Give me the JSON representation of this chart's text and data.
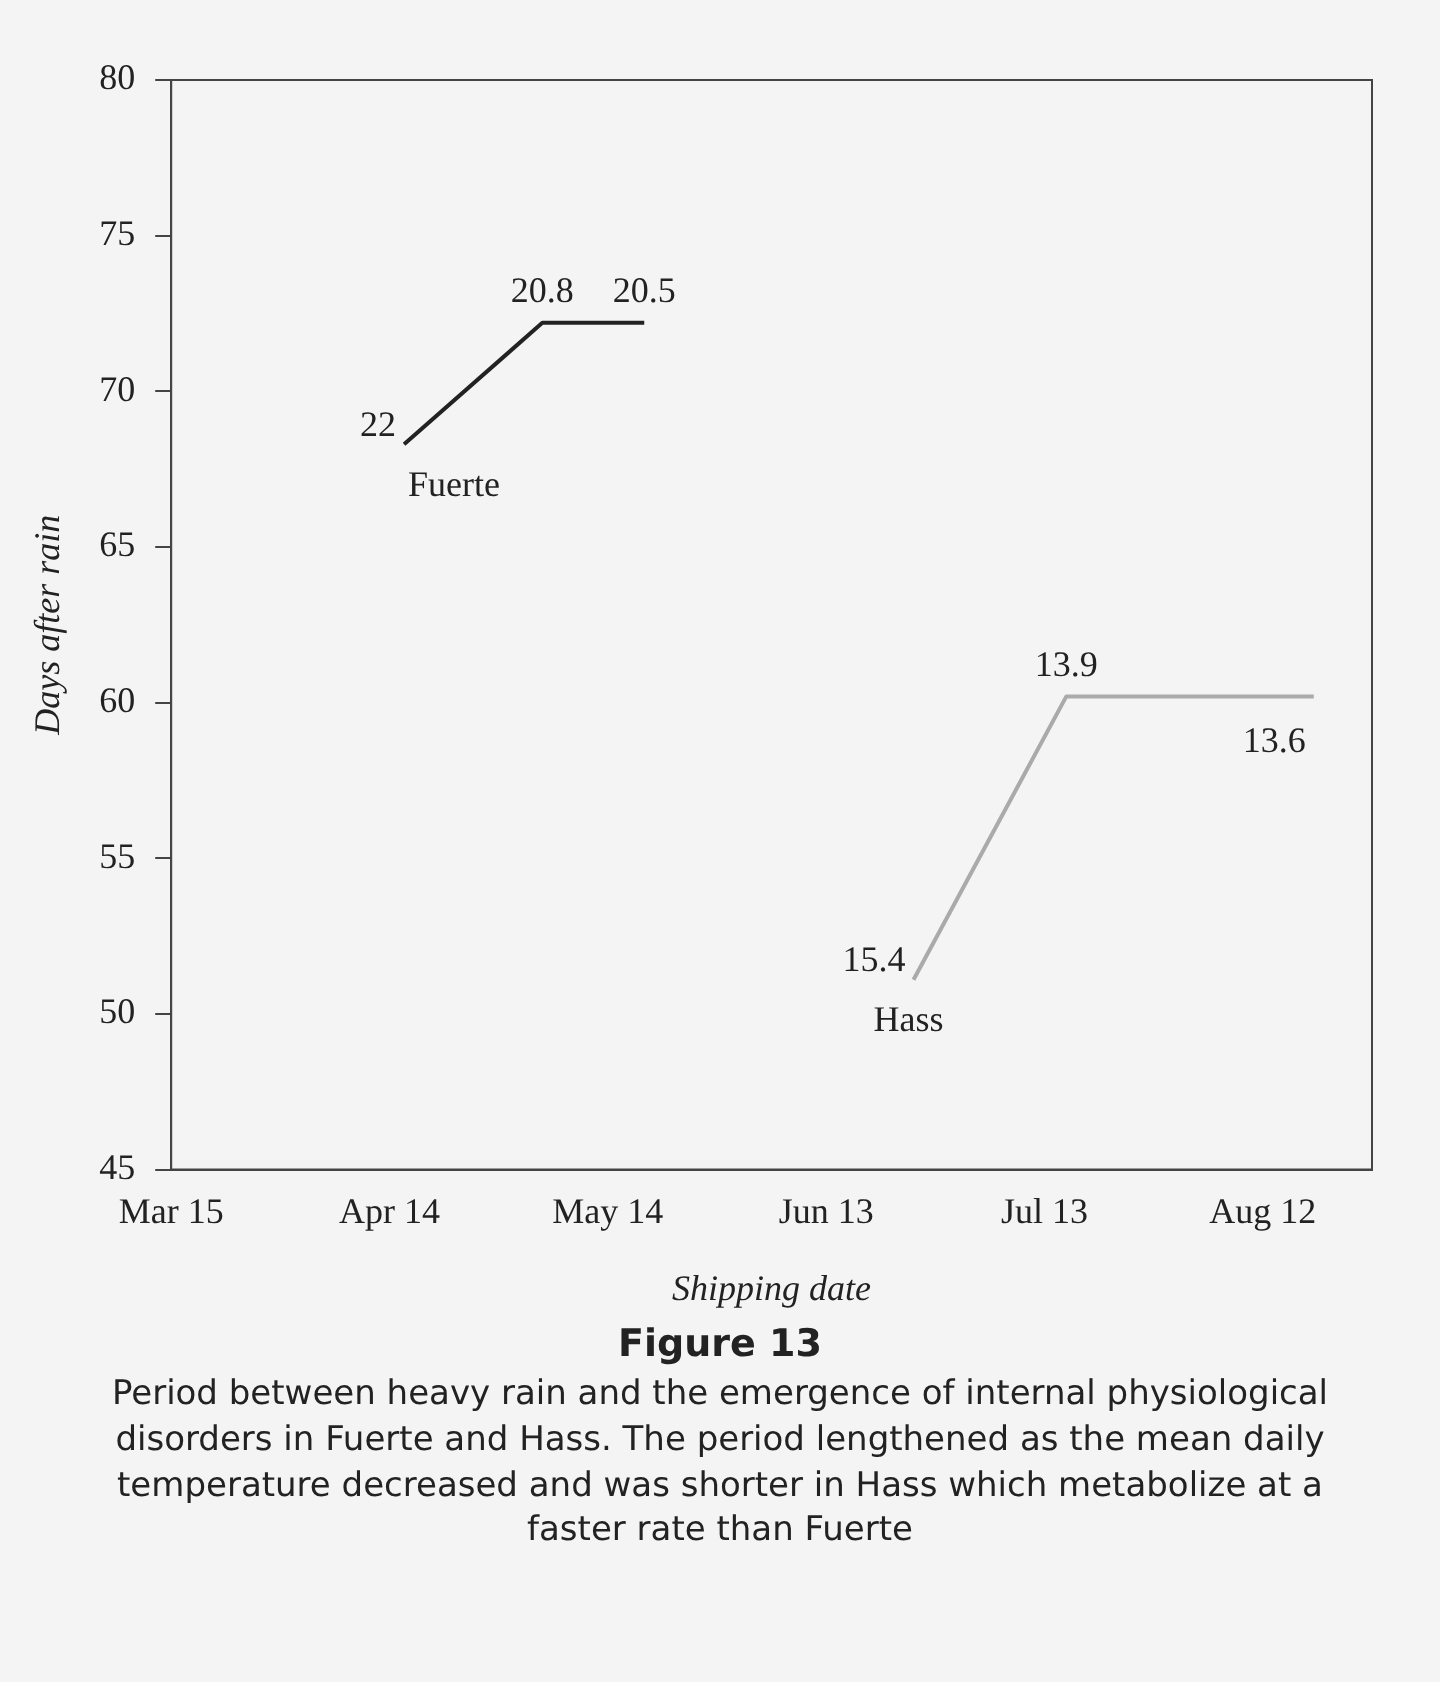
{
  "chart_data": {
    "type": "line",
    "xlabel": "Shipping date",
    "ylabel": "Days after rain",
    "xlim": [
      "--03-15",
      "--08-27"
    ],
    "xticks": [
      {
        "value": "--03-15",
        "label": "Mar 15"
      },
      {
        "value": "--04-14",
        "label": "Apr 14"
      },
      {
        "value": "--05-14",
        "label": "May 14"
      },
      {
        "value": "--06-13",
        "label": "Jun 13"
      },
      {
        "value": "--07-13",
        "label": "Jul 13"
      },
      {
        "value": "--08-12",
        "label": "Aug 12"
      }
    ],
    "ylim": [
      45,
      80
    ],
    "yticks": [
      45,
      50,
      55,
      60,
      65,
      70,
      75,
      80
    ],
    "series": [
      {
        "name": "Fuerte",
        "color": "#222222",
        "x": [
          "--04-16",
          "--05-05",
          "--05-19"
        ],
        "values": [
          68.3,
          72.2,
          72.2
        ]
      },
      {
        "name": "Hass",
        "color": "#aaaaaa",
        "x": [
          "--06-25",
          "--07-16",
          "--08-19"
        ],
        "values": [
          51.1,
          60.2,
          60.2
        ]
      }
    ],
    "grid": false,
    "legend": false,
    "marker": "none",
    "line_style": "solid",
    "annotations": [
      {
        "text": "22",
        "x": "--04-16",
        "y": 68.3
      },
      {
        "text": "20.8",
        "x": "--05-05",
        "y": 72.2
      },
      {
        "text": "20.5",
        "x": "--05-19",
        "y": 72.2
      },
      {
        "text": "15.4",
        "x": "--06-25",
        "y": 51.1
      },
      {
        "text": "13.9",
        "x": "--07-16",
        "y": 60.2
      },
      {
        "text": "13.6",
        "x": "--08-19",
        "y": 60.2
      },
      "Figure 13",
      "Period between heavy rain and the emergence of internal physiological disorders in Fuerte and Hass. The period lengthened as the mean daily temperature decreased and was shorter in Hass which metabolize at a faster rate than Fuerte"
    ]
  }
}
